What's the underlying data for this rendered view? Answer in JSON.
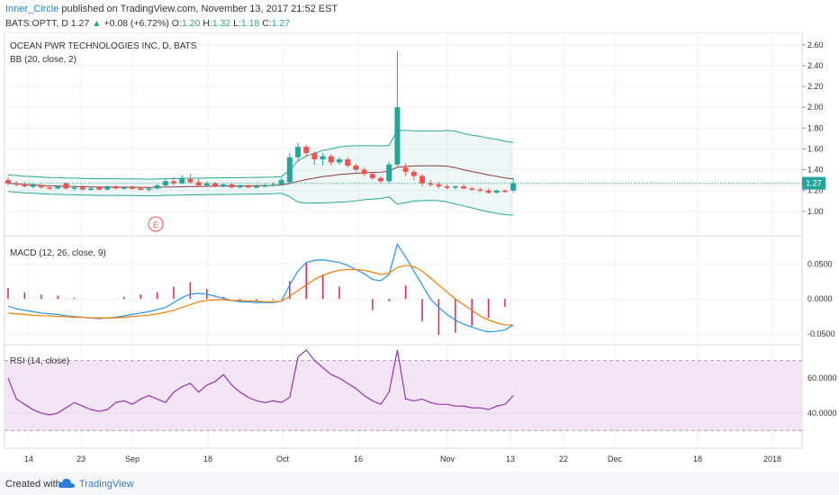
{
  "header": {
    "author": "Inner_Circle",
    "published_text": "published on TradingView.com, November 13, 2017 21:52 EST",
    "symbol": "BATS:OPTT, D",
    "last": "1.27",
    "change": "+0.08 (+6.72%)",
    "o_label": "O:",
    "o_value": "1.20",
    "h_label": "H:",
    "h_value": "1.32",
    "l_label": "L:",
    "l_value": "1.18",
    "c_label": "C:",
    "c_value": "1.27"
  },
  "panes": {
    "main_title": "OCEAN PWR TECHNOLOGIES INC, D, BATS",
    "bb_label": "BB (20, close, 2)",
    "macd_label": "MACD (12, 26, close, 9)",
    "rsi_label": "RSI (14, close)",
    "earnings_marker": "E",
    "price_badge": "1.27"
  },
  "footer": {
    "created": "Created with",
    "brand": "TradingView"
  },
  "colors": {
    "up": "#26a69a",
    "down": "#ef5350",
    "bb_band": "#26a69a",
    "bb_mid": "#8b3a3a",
    "macd": "#2196f3",
    "signal": "#f57c00",
    "hist": "#e91e63",
    "rsi": "#8e24aa",
    "rsi_fill": "#f3e5f5"
  },
  "chart_data": {
    "type": "candlestick",
    "x_ticks": [
      "14",
      "23",
      "Sep",
      "18",
      "Oct",
      "16",
      "Nov",
      "13",
      "22",
      "Dec",
      "18",
      "2018"
    ],
    "price_ticks": [
      "2.60",
      "2.40",
      "2.20",
      "2.00",
      "1.80",
      "1.60",
      "1.40",
      "1.20",
      "1.00"
    ],
    "macd_ticks": [
      "0.0500",
      "0.0000",
      "-0.0500"
    ],
    "rsi_ticks": [
      "60.0000",
      "40.0000"
    ],
    "price_ylim": [
      0.8,
      2.65
    ],
    "macd_ylim": [
      -0.06,
      0.085
    ],
    "rsi_ylim": [
      22,
      77
    ],
    "candles": [
      {
        "o": 1.3,
        "h": 1.33,
        "l": 1.25,
        "c": 1.27
      },
      {
        "o": 1.27,
        "h": 1.29,
        "l": 1.24,
        "c": 1.26
      },
      {
        "o": 1.26,
        "h": 1.28,
        "l": 1.23,
        "c": 1.24
      },
      {
        "o": 1.24,
        "h": 1.27,
        "l": 1.22,
        "c": 1.25
      },
      {
        "o": 1.25,
        "h": 1.26,
        "l": 1.22,
        "c": 1.23
      },
      {
        "o": 1.23,
        "h": 1.25,
        "l": 1.21,
        "c": 1.22
      },
      {
        "o": 1.22,
        "h": 1.25,
        "l": 1.21,
        "c": 1.24
      },
      {
        "o": 1.27,
        "h": 1.28,
        "l": 1.21,
        "c": 1.22
      },
      {
        "o": 1.22,
        "h": 1.24,
        "l": 1.2,
        "c": 1.23
      },
      {
        "o": 1.23,
        "h": 1.25,
        "l": 1.2,
        "c": 1.21
      },
      {
        "o": 1.21,
        "h": 1.24,
        "l": 1.2,
        "c": 1.22
      },
      {
        "o": 1.23,
        "h": 1.24,
        "l": 1.2,
        "c": 1.21
      },
      {
        "o": 1.21,
        "h": 1.25,
        "l": 1.2,
        "c": 1.24
      },
      {
        "o": 1.24,
        "h": 1.25,
        "l": 1.21,
        "c": 1.22
      },
      {
        "o": 1.22,
        "h": 1.24,
        "l": 1.21,
        "c": 1.23
      },
      {
        "o": 1.23,
        "h": 1.25,
        "l": 1.21,
        "c": 1.22
      },
      {
        "o": 1.22,
        "h": 1.24,
        "l": 1.2,
        "c": 1.21
      },
      {
        "o": 1.21,
        "h": 1.23,
        "l": 1.19,
        "c": 1.22
      },
      {
        "o": 1.22,
        "h": 1.26,
        "l": 1.21,
        "c": 1.25
      },
      {
        "o": 1.25,
        "h": 1.31,
        "l": 1.23,
        "c": 1.29
      },
      {
        "o": 1.29,
        "h": 1.33,
        "l": 1.25,
        "c": 1.27
      },
      {
        "o": 1.27,
        "h": 1.35,
        "l": 1.26,
        "c": 1.32
      },
      {
        "o": 1.31,
        "h": 1.36,
        "l": 1.27,
        "c": 1.28
      },
      {
        "o": 1.28,
        "h": 1.31,
        "l": 1.24,
        "c": 1.25
      },
      {
        "o": 1.25,
        "h": 1.29,
        "l": 1.24,
        "c": 1.27
      },
      {
        "o": 1.27,
        "h": 1.28,
        "l": 1.23,
        "c": 1.24
      },
      {
        "o": 1.24,
        "h": 1.27,
        "l": 1.23,
        "c": 1.26
      },
      {
        "o": 1.26,
        "h": 1.28,
        "l": 1.22,
        "c": 1.23
      },
      {
        "o": 1.23,
        "h": 1.26,
        "l": 1.22,
        "c": 1.25
      },
      {
        "o": 1.25,
        "h": 1.26,
        "l": 1.22,
        "c": 1.23
      },
      {
        "o": 1.23,
        "h": 1.26,
        "l": 1.22,
        "c": 1.24
      },
      {
        "o": 1.24,
        "h": 1.27,
        "l": 1.23,
        "c": 1.25
      },
      {
        "o": 1.25,
        "h": 1.28,
        "l": 1.24,
        "c": 1.26
      },
      {
        "o": 1.26,
        "h": 1.32,
        "l": 1.25,
        "c": 1.3
      },
      {
        "o": 1.28,
        "h": 1.56,
        "l": 1.26,
        "c": 1.52
      },
      {
        "o": 1.52,
        "h": 1.66,
        "l": 1.48,
        "c": 1.62
      },
      {
        "o": 1.62,
        "h": 1.64,
        "l": 1.52,
        "c": 1.56
      },
      {
        "o": 1.56,
        "h": 1.58,
        "l": 1.45,
        "c": 1.5
      },
      {
        "o": 1.5,
        "h": 1.56,
        "l": 1.44,
        "c": 1.53
      },
      {
        "o": 1.53,
        "h": 1.55,
        "l": 1.44,
        "c": 1.47
      },
      {
        "o": 1.47,
        "h": 1.52,
        "l": 1.45,
        "c": 1.5
      },
      {
        "o": 1.5,
        "h": 1.52,
        "l": 1.42,
        "c": 1.44
      },
      {
        "o": 1.44,
        "h": 1.46,
        "l": 1.38,
        "c": 1.4
      },
      {
        "o": 1.4,
        "h": 1.42,
        "l": 1.34,
        "c": 1.36
      },
      {
        "o": 1.36,
        "h": 1.38,
        "l": 1.3,
        "c": 1.32
      },
      {
        "o": 1.32,
        "h": 1.34,
        "l": 1.27,
        "c": 1.29
      },
      {
        "o": 1.29,
        "h": 1.48,
        "l": 1.27,
        "c": 1.45
      },
      {
        "o": 1.45,
        "h": 2.54,
        "l": 1.43,
        "c": 2.0
      },
      {
        "o": 1.42,
        "h": 1.46,
        "l": 1.34,
        "c": 1.38
      },
      {
        "o": 1.38,
        "h": 1.4,
        "l": 1.3,
        "c": 1.34
      },
      {
        "o": 1.34,
        "h": 1.36,
        "l": 1.24,
        "c": 1.27
      },
      {
        "o": 1.27,
        "h": 1.3,
        "l": 1.24,
        "c": 1.26
      },
      {
        "o": 1.26,
        "h": 1.28,
        "l": 1.22,
        "c": 1.24
      },
      {
        "o": 1.24,
        "h": 1.26,
        "l": 1.21,
        "c": 1.23
      },
      {
        "o": 1.23,
        "h": 1.25,
        "l": 1.21,
        "c": 1.24
      },
      {
        "o": 1.24,
        "h": 1.26,
        "l": 1.21,
        "c": 1.22
      },
      {
        "o": 1.22,
        "h": 1.24,
        "l": 1.2,
        "c": 1.21
      },
      {
        "o": 1.21,
        "h": 1.23,
        "l": 1.19,
        "c": 1.2
      },
      {
        "o": 1.2,
        "h": 1.22,
        "l": 1.17,
        "c": 1.18
      },
      {
        "o": 1.18,
        "h": 1.21,
        "l": 1.17,
        "c": 1.2
      },
      {
        "o": 1.2,
        "h": 1.21,
        "l": 1.18,
        "c": 1.19
      },
      {
        "o": 1.2,
        "h": 1.32,
        "l": 1.18,
        "c": 1.27
      }
    ],
    "macd": [
      -0.01,
      -0.014,
      -0.016,
      -0.018,
      -0.02,
      -0.021,
      -0.022,
      -0.024,
      -0.025,
      -0.026,
      -0.027,
      -0.028,
      -0.027,
      -0.026,
      -0.024,
      -0.022,
      -0.02,
      -0.018,
      -0.015,
      -0.012,
      -0.005,
      0.002,
      0.007,
      0.008,
      0.007,
      0.004,
      0.001,
      -0.002,
      -0.004,
      -0.004,
      -0.005,
      -0.005,
      -0.005,
      -0.003,
      0.02,
      0.04,
      0.052,
      0.055,
      0.056,
      0.054,
      0.052,
      0.048,
      0.042,
      0.036,
      0.028,
      0.026,
      0.035,
      0.078,
      0.06,
      0.04,
      0.02,
      0.0,
      -0.012,
      -0.022,
      -0.03,
      -0.036,
      -0.04,
      -0.044,
      -0.047,
      -0.046,
      -0.044,
      -0.037
    ],
    "signal": [
      -0.02,
      -0.021,
      -0.022,
      -0.023,
      -0.024,
      -0.024,
      -0.025,
      -0.025,
      -0.026,
      -0.026,
      -0.027,
      -0.027,
      -0.027,
      -0.027,
      -0.026,
      -0.025,
      -0.024,
      -0.023,
      -0.021,
      -0.019,
      -0.016,
      -0.012,
      -0.008,
      -0.004,
      -0.002,
      -0.001,
      -0.001,
      -0.002,
      -0.002,
      -0.003,
      -0.003,
      -0.004,
      -0.004,
      -0.003,
      0.004,
      0.012,
      0.02,
      0.028,
      0.034,
      0.038,
      0.041,
      0.042,
      0.042,
      0.041,
      0.038,
      0.035,
      0.037,
      0.045,
      0.048,
      0.046,
      0.04,
      0.03,
      0.02,
      0.01,
      0.0,
      -0.008,
      -0.016,
      -0.024,
      -0.03,
      -0.034,
      -0.037,
      -0.037
    ],
    "rsi": [
      60,
      48,
      45,
      42,
      40,
      39,
      40,
      43,
      46,
      44,
      42,
      41,
      42,
      46,
      47,
      45,
      48,
      50,
      48,
      46,
      52,
      55,
      57,
      52,
      56,
      58,
      62,
      56,
      52,
      49,
      47,
      46,
      47,
      46,
      49,
      72,
      76,
      70,
      66,
      62,
      60,
      57,
      54,
      50,
      47,
      45,
      52,
      76,
      48,
      47,
      48,
      46,
      45,
      45,
      44,
      44,
      43,
      43,
      42,
      44,
      45,
      50
    ]
  }
}
